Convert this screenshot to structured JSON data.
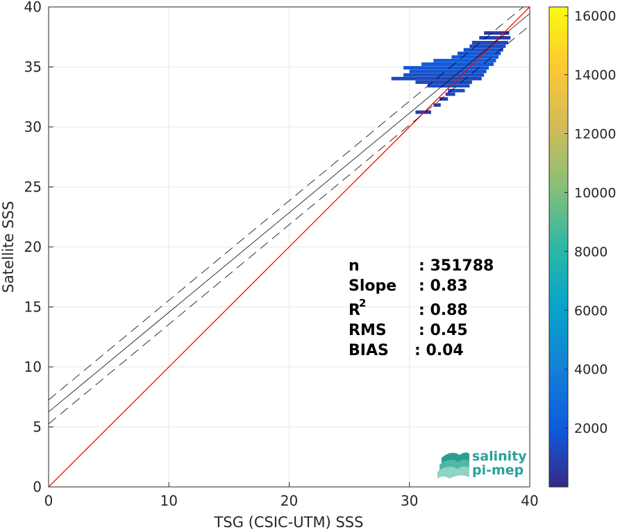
{
  "chart_data": {
    "type": "heatmap",
    "xlabel": "TSG (CSIC-UTM) SSS",
    "ylabel": "Satellite SSS",
    "xlim": [
      0,
      40
    ],
    "ylim": [
      0,
      40
    ],
    "xticks": [
      0,
      10,
      20,
      30,
      40
    ],
    "yticks": [
      0,
      5,
      10,
      15,
      20,
      25,
      30,
      35,
      40
    ],
    "grid": true,
    "identity_line": {
      "color": "#ff0000",
      "x": [
        0,
        40
      ],
      "y": [
        0,
        40
      ]
    },
    "regression": {
      "slope": 0.83,
      "intercept": 6.25,
      "band_offsets": [
        1.0,
        -1.0
      ],
      "color": "#000000"
    },
    "density_cells": [
      {
        "x0": 30.5,
        "x1": 31.8,
        "y": 31.2,
        "count": 800
      },
      {
        "x0": 32.0,
        "x1": 32.6,
        "y": 31.8,
        "count": 700
      },
      {
        "x0": 32.5,
        "x1": 33.2,
        "y": 32.3,
        "count": 900
      },
      {
        "x0": 33.0,
        "x1": 33.8,
        "y": 32.7,
        "count": 1200
      },
      {
        "x0": 33.2,
        "x1": 34.6,
        "y": 33.0,
        "count": 1500
      },
      {
        "x0": 31.5,
        "x1": 35.0,
        "y": 33.4,
        "count": 1400
      },
      {
        "x0": 30.5,
        "x1": 35.2,
        "y": 33.7,
        "count": 1300
      },
      {
        "x0": 28.5,
        "x1": 36.0,
        "y": 34.0,
        "count": 1200
      },
      {
        "x0": 29.5,
        "x1": 36.2,
        "y": 34.3,
        "count": 1500
      },
      {
        "x0": 30.0,
        "x1": 36.4,
        "y": 34.6,
        "count": 1700
      },
      {
        "x0": 29.5,
        "x1": 36.6,
        "y": 34.9,
        "count": 1800
      },
      {
        "x0": 31.0,
        "x1": 37.0,
        "y": 35.2,
        "count": 1900
      },
      {
        "x0": 32.0,
        "x1": 37.2,
        "y": 35.5,
        "count": 2100
      },
      {
        "x0": 33.5,
        "x1": 37.4,
        "y": 35.8,
        "count": 2000
      },
      {
        "x0": 34.0,
        "x1": 37.6,
        "y": 36.1,
        "count": 1800
      },
      {
        "x0": 34.5,
        "x1": 37.8,
        "y": 36.4,
        "count": 1600
      },
      {
        "x0": 35.0,
        "x1": 38.0,
        "y": 36.7,
        "count": 1400
      },
      {
        "x0": 35.2,
        "x1": 38.2,
        "y": 37.0,
        "count": 1200
      },
      {
        "x0": 35.8,
        "x1": 38.4,
        "y": 37.4,
        "count": 900
      },
      {
        "x0": 36.2,
        "x1": 38.3,
        "y": 37.8,
        "count": 600
      }
    ],
    "colorbar": {
      "range": [
        0,
        16300
      ],
      "ticks": [
        2000,
        4000,
        6000,
        8000,
        10000,
        12000,
        14000,
        16000
      ],
      "tick_labels": [
        "2000",
        "4000",
        "6000",
        "8000",
        "10000",
        "12000",
        "14000",
        "16000"
      ],
      "colormap": "parula",
      "stops": [
        "#352a87",
        "#0f5cdd",
        "#1481d6",
        "#06a4ca",
        "#2eb7a4",
        "#87bf77",
        "#d1bb59",
        "#fec832",
        "#f9fb0e"
      ]
    },
    "stats": {
      "n_label": "n",
      "n_value": ": 351788",
      "slope_label": "Slope",
      "slope_value": ": 0.83",
      "r2_label": "R",
      "r2_sup": "2",
      "r2_value": ": 0.88",
      "rms_label": "RMS",
      "rms_value": ": 0.45",
      "bias_label": "BIAS",
      "bias_value": ": 0.04"
    }
  },
  "logo": {
    "line1": "salinity",
    "line2": "pi-mep"
  }
}
